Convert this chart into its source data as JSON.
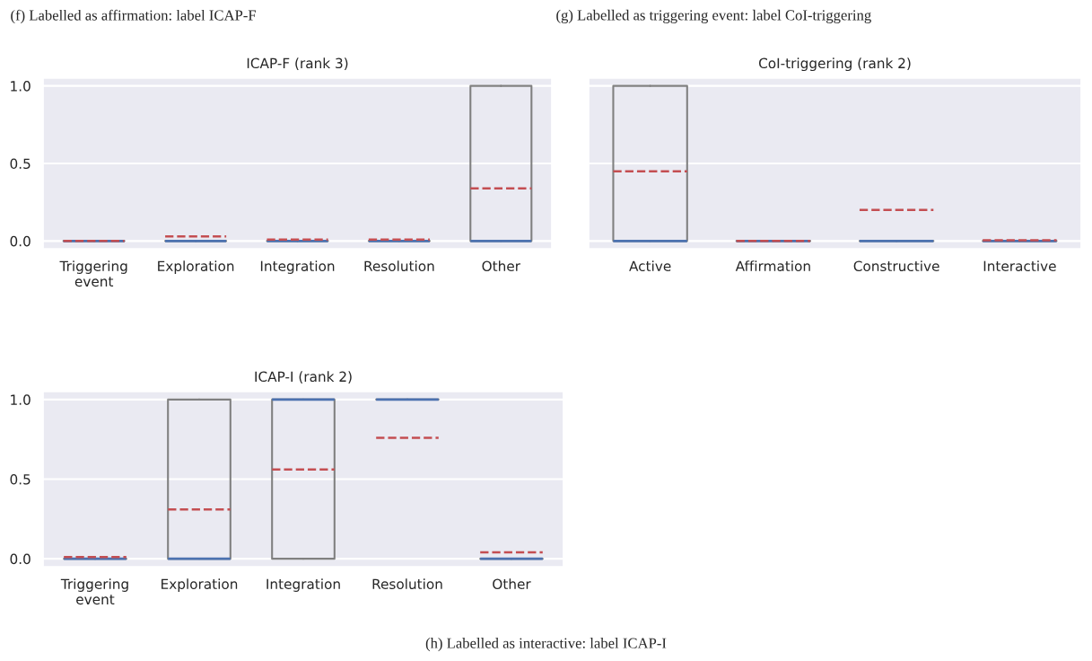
{
  "chart_data": [
    {
      "type": "box",
      "title": "ICAP-F (rank 3)",
      "annotations": [
        "(f) Labelled as affirmation: label ICAP-F"
      ],
      "categories": [
        "Triggering event",
        "Exploration",
        "Integration",
        "Resolution",
        "Other"
      ],
      "ylim": [
        -0.05,
        1.05
      ],
      "yticks": [
        {
          "value": 0,
          "label": "0.0"
        },
        {
          "value": 0.5,
          "label": "0.5"
        },
        {
          "value": 1,
          "label": "1.0"
        }
      ],
      "grid": "y",
      "series": [
        {
          "color": "#808080",
          "boxes": [
            {
              "low": 0,
              "q1": 0,
              "median": 0,
              "q3": 0,
              "high": 0,
              "mean": 0
            },
            {
              "low": 0,
              "q1": 0,
              "median": 0,
              "q3": 0,
              "high": 0,
              "mean": 0.03
            },
            {
              "low": 0,
              "q1": 0,
              "median": 0,
              "q3": 0,
              "high": 0,
              "mean": 0.01
            },
            {
              "low": 0,
              "q1": 0,
              "median": 0,
              "q3": 0,
              "high": 0,
              "mean": 0.01
            },
            {
              "low": 0,
              "q1": 0,
              "median": 0,
              "q3": 1,
              "high": 1,
              "mean": 0.34
            }
          ]
        }
      ]
    },
    {
      "type": "box",
      "title": "CoI-triggering (rank 2)",
      "annotations": [
        "(g) Labelled as triggering event: label CoI-triggering"
      ],
      "categories": [
        "Active",
        "Affirmation",
        "Constructive",
        "Interactive"
      ],
      "ylim": [
        -0.05,
        1.05
      ],
      "yticks": [
        0,
        0.5,
        1
      ],
      "grid": "y",
      "tick_labels": "x",
      "series": [
        {
          "color": "#808080",
          "boxes": [
            {
              "low": 0,
              "q1": 0,
              "median": 0,
              "q3": 1,
              "high": 1,
              "mean": 0.45
            },
            {
              "low": 0,
              "q1": 0,
              "median": 0,
              "q3": 0,
              "high": 0,
              "mean": 0
            },
            {
              "low": 0,
              "q1": 0,
              "median": 0,
              "q3": 0,
              "high": 0,
              "mean": 0.2
            },
            {
              "low": 0,
              "q1": 0,
              "median": 0,
              "q3": 0,
              "high": 0,
              "mean": 0.005
            }
          ]
        }
      ]
    },
    {
      "type": "box",
      "title": "ICAP-I (rank 2)",
      "annotations": [
        "(h) Labelled as interactive: label ICAP-I"
      ],
      "categories": [
        "Triggering event",
        "Exploration",
        "Integration",
        "Resolution",
        "Other"
      ],
      "ylim": [
        -0.05,
        1.05
      ],
      "yticks": [
        {
          "value": 0,
          "label": "0.0"
        },
        {
          "value": 0.5,
          "label": "0.5"
        },
        {
          "value": 1,
          "label": "1.0"
        }
      ],
      "grid": "y",
      "series": [
        {
          "color": "#808080",
          "boxes": [
            {
              "low": 0,
              "q1": 0,
              "median": 0,
              "q3": 0,
              "high": 0,
              "mean": 0.01
            },
            {
              "low": 0,
              "q1": 0,
              "median": 0,
              "q3": 1,
              "high": 1,
              "mean": 0.31
            },
            {
              "low": 0,
              "q1": 0,
              "median": 1,
              "q3": 1,
              "high": 1,
              "mean": 0.56
            },
            {
              "low": 1,
              "q1": 1,
              "median": 1,
              "q3": 1,
              "high": 1,
              "mean": 0.76
            },
            {
              "low": 0,
              "q1": 0,
              "median": 0,
              "q3": 0,
              "high": 0,
              "mean": 0.04
            }
          ]
        }
      ]
    }
  ]
}
